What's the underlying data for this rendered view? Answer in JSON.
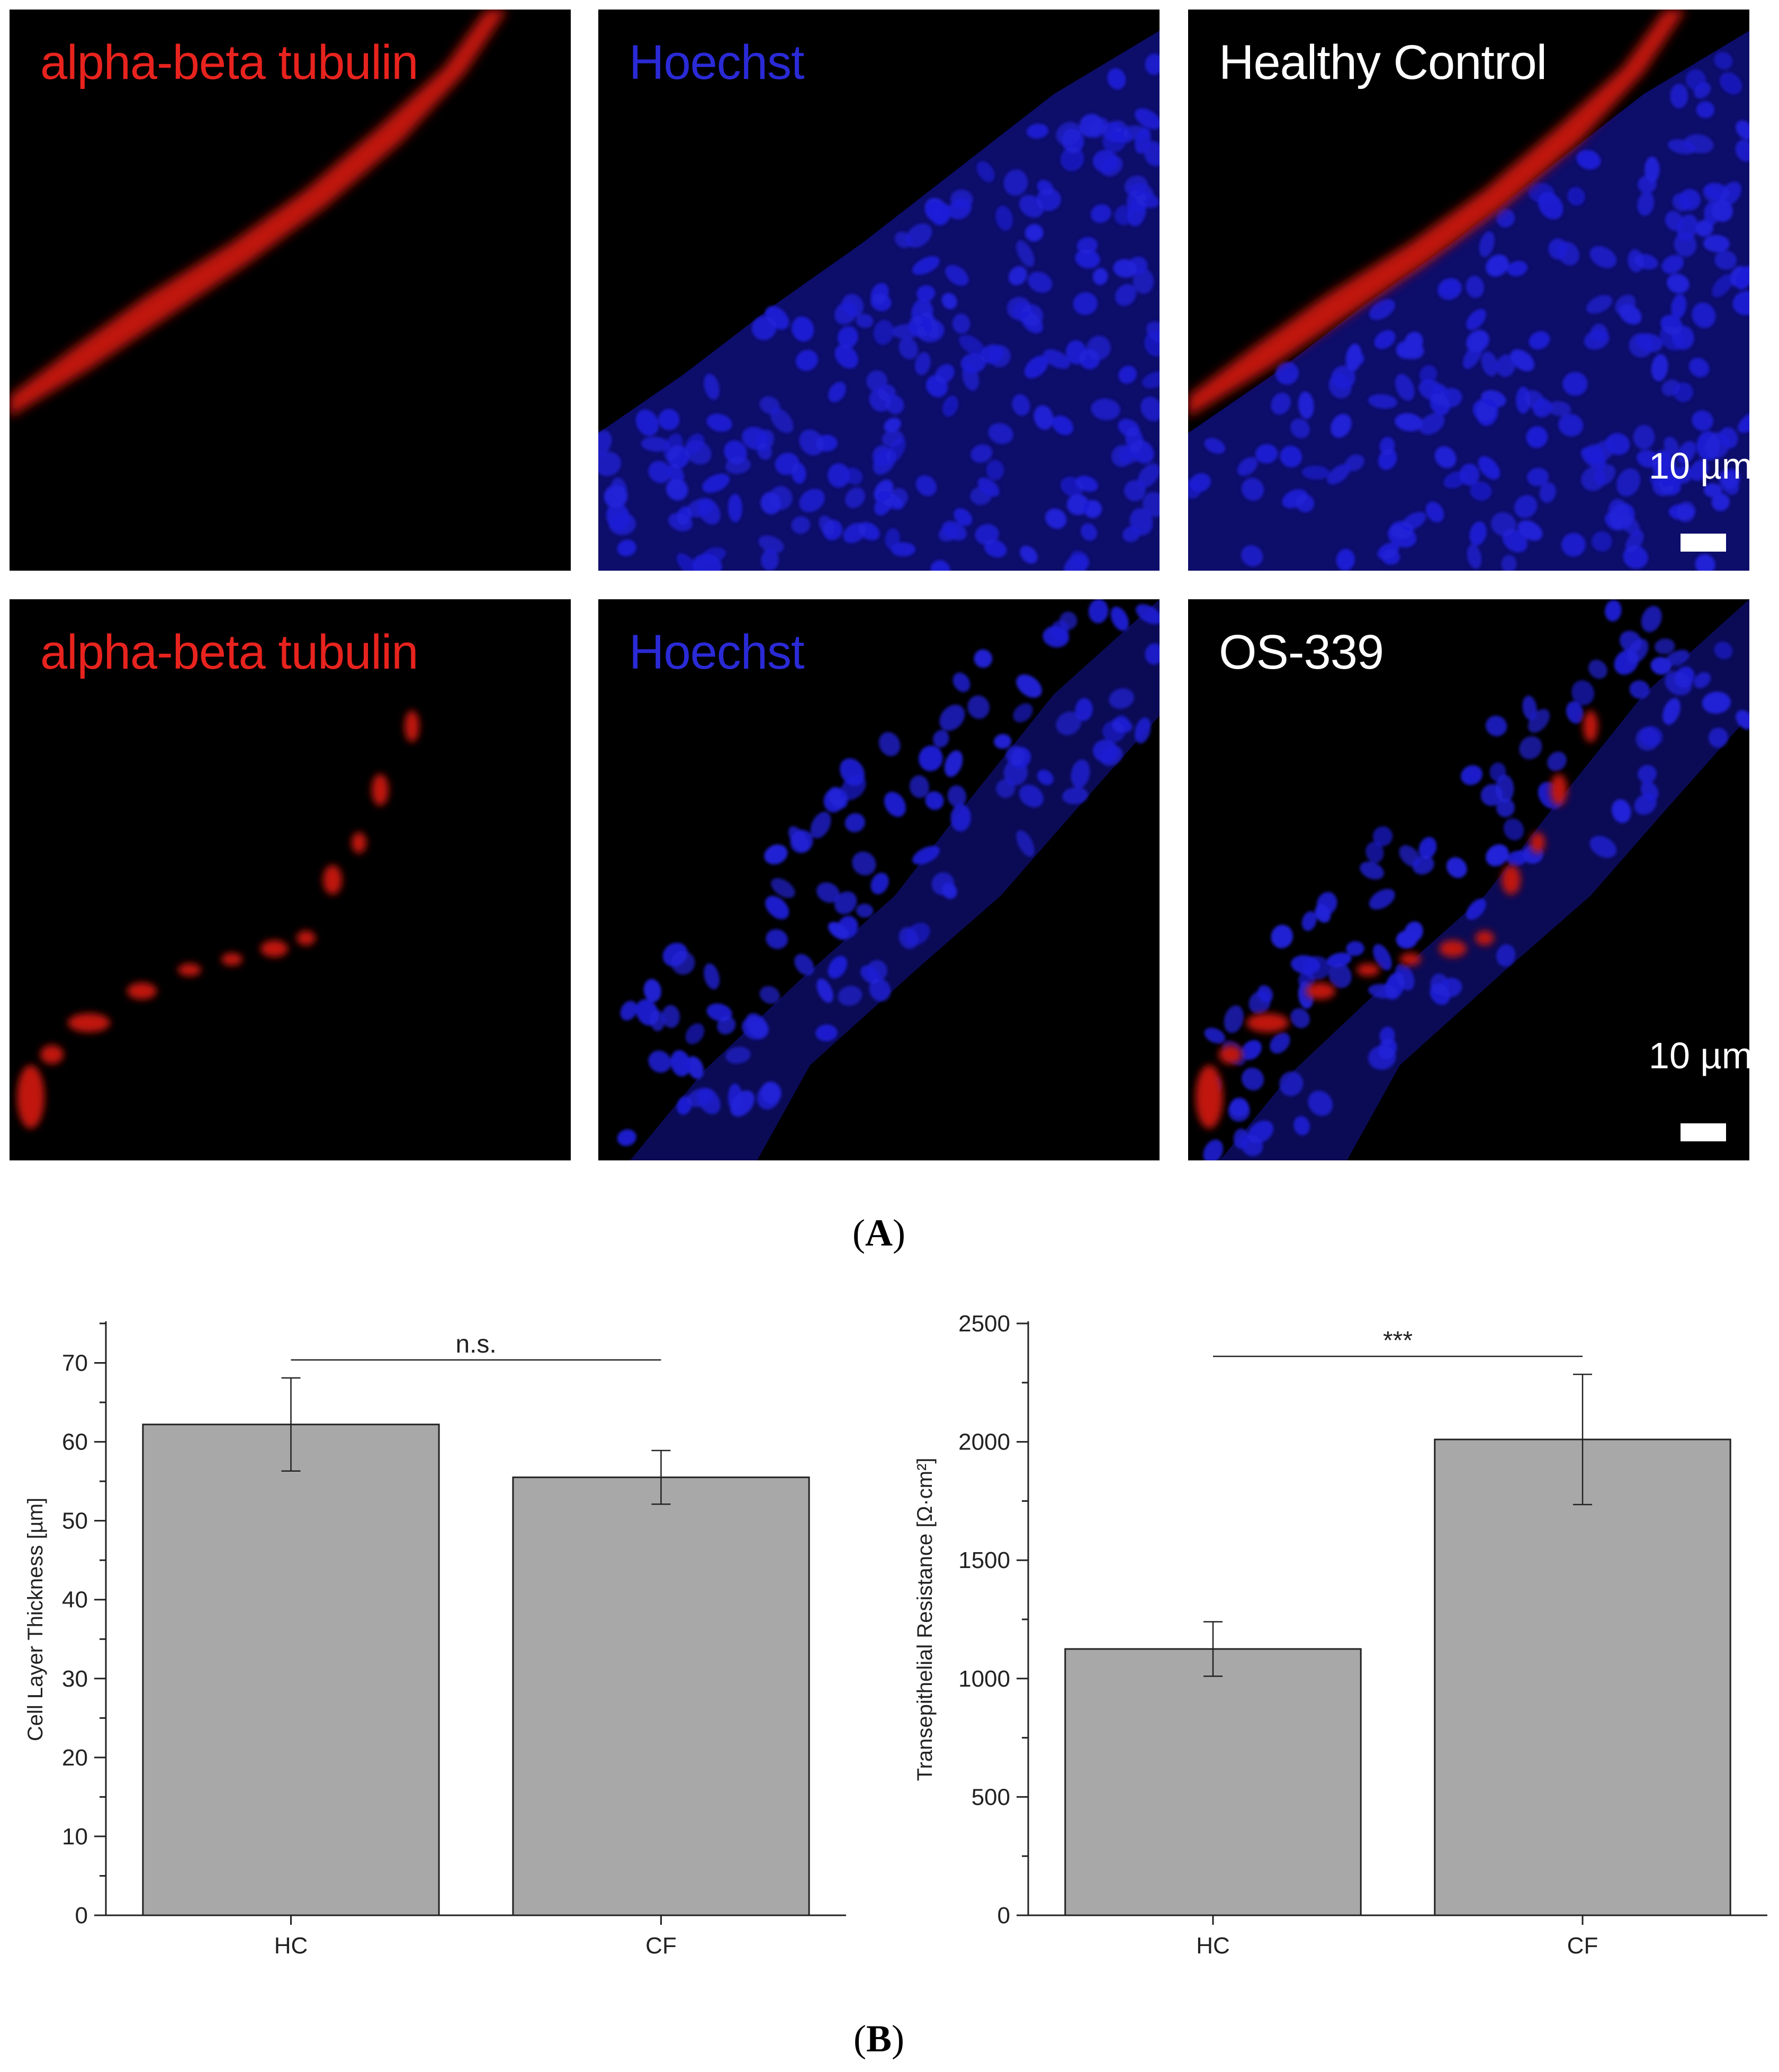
{
  "panelA": {
    "label": "A",
    "rows": [
      {
        "channels": [
          {
            "text": "alpha-beta tubulin",
            "color": "#e8231e"
          },
          {
            "text": "Hoechst",
            "color": "#2a2ad6"
          },
          {
            "text": "Healthy Control",
            "color": "#ffffff"
          }
        ],
        "scale_bar": "10 µm"
      },
      {
        "channels": [
          {
            "text": "alpha-beta tubulin",
            "color": "#e8231e"
          },
          {
            "text": "Hoechst",
            "color": "#2a2ad6"
          },
          {
            "text": "OS-339",
            "color": "#ffffff"
          }
        ],
        "scale_bar": "10 µm"
      }
    ]
  },
  "panelB": {
    "label": "B"
  },
  "chart_data": [
    {
      "type": "bar",
      "categories": [
        "HC",
        "CF"
      ],
      "values": [
        62.2,
        55.5
      ],
      "errors": [
        5.9,
        3.4
      ],
      "ylabel": "Cell Layer Thickness [µm]",
      "ylim": [
        0,
        75
      ],
      "yticks": [
        0,
        10,
        20,
        30,
        40,
        50,
        60,
        70
      ],
      "significance": "n.s.",
      "bar_color": "#a8a8a8"
    },
    {
      "type": "bar",
      "categories": [
        "HC",
        "CF"
      ],
      "values": [
        1125,
        2010
      ],
      "errors": [
        115,
        275
      ],
      "ylabel": "Transepithelial Resistance [Ω·cm²]",
      "ylim": [
        0,
        2500
      ],
      "yticks": [
        0,
        500,
        1000,
        1500,
        2000,
        2500
      ],
      "significance": "***",
      "bar_color": "#a8a8a8"
    }
  ]
}
